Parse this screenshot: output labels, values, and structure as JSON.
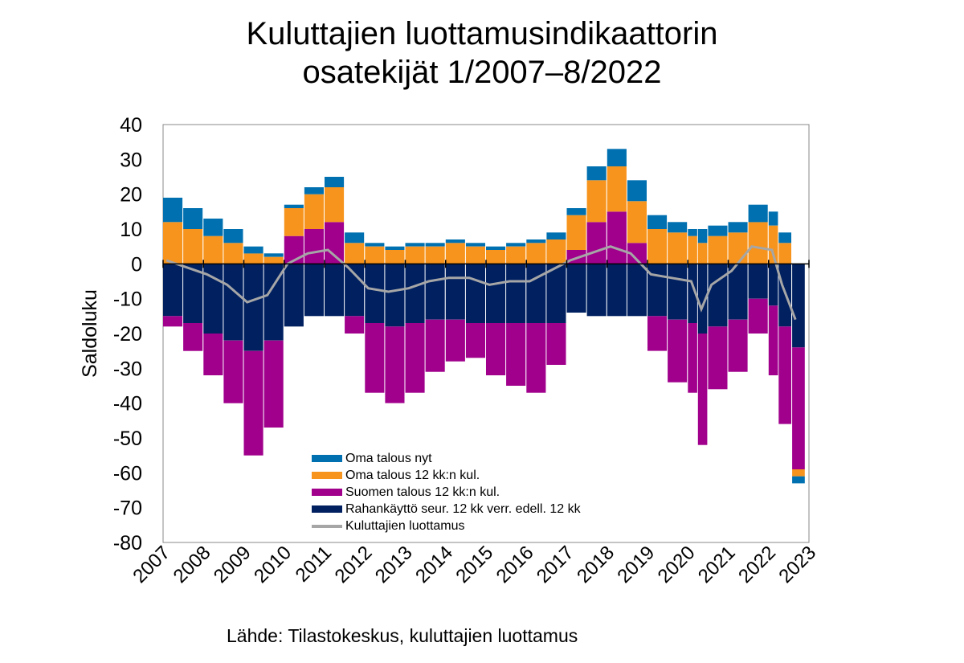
{
  "title": "Kuluttajien luottamusindikaattorin osatekijät 1/2007–8/2022",
  "title_lines": [
    "Kuluttajien luottamusindikaattorin",
    "osatekijät 1/2007–8/2022"
  ],
  "source": "Lähde: Tilastokeskus, kuluttajien luottamus",
  "chart_data": {
    "type": "bar",
    "stacked": true,
    "ylabel": "Saldoluku",
    "xlabel": "",
    "ylim": [
      -80,
      40
    ],
    "yticks": [
      40,
      30,
      20,
      10,
      0,
      -10,
      -20,
      -30,
      -40,
      -50,
      -60,
      -70,
      -80
    ],
    "xticks": [
      "2007",
      "2008",
      "2009",
      "2010",
      "2011",
      "2012",
      "2013",
      "2014",
      "2015",
      "2016",
      "2017",
      "2018",
      "2019",
      "2020",
      "2021",
      "2022",
      "2023"
    ],
    "x_period": "monthly, 1/2007–8/2022",
    "legend_position": "bottom-center",
    "x": [
      "2007-01",
      "2007-07",
      "2008-01",
      "2008-07",
      "2009-01",
      "2009-07",
      "2010-01",
      "2010-07",
      "2011-01",
      "2011-07",
      "2012-01",
      "2012-07",
      "2013-01",
      "2013-07",
      "2014-01",
      "2014-07",
      "2015-01",
      "2015-07",
      "2016-01",
      "2016-07",
      "2017-01",
      "2017-07",
      "2018-01",
      "2018-07",
      "2019-01",
      "2019-07",
      "2020-01",
      "2020-04",
      "2020-07",
      "2021-01",
      "2021-07",
      "2022-01",
      "2022-04",
      "2022-08"
    ],
    "series": [
      {
        "name": "Oma talous nyt",
        "color": "#0070b0",
        "values": [
          7,
          6,
          5,
          4,
          2,
          1,
          1,
          2,
          3,
          3,
          1,
          1,
          1,
          1,
          1,
          1,
          1,
          1,
          1,
          2,
          2,
          4,
          5,
          6,
          4,
          3,
          2,
          4,
          3,
          3,
          5,
          4,
          3,
          -2
        ]
      },
      {
        "name": "Oma talous 12 kk:n kul.",
        "color": "#f7941d",
        "values": [
          12,
          10,
          8,
          6,
          3,
          2,
          8,
          10,
          10,
          6,
          5,
          4,
          5,
          5,
          6,
          5,
          4,
          5,
          6,
          7,
          10,
          12,
          13,
          12,
          10,
          9,
          8,
          6,
          8,
          9,
          12,
          11,
          6,
          -2
        ]
      },
      {
        "name": "Suomen talous 12 kk:n kul.",
        "color": "#a0008c",
        "values": [
          -3,
          -8,
          -12,
          -18,
          -30,
          -25,
          8,
          10,
          12,
          -5,
          -20,
          -22,
          -20,
          -15,
          -12,
          -10,
          -15,
          -18,
          -20,
          -12,
          4,
          12,
          15,
          6,
          -10,
          -18,
          -20,
          -32,
          -18,
          -15,
          -10,
          -20,
          -28,
          -35
        ]
      },
      {
        "name": "Rahankäyttö seur. 12 kk verr. edell. 12 kk",
        "color": "#002060",
        "values": [
          -15,
          -17,
          -20,
          -22,
          -25,
          -22,
          -18,
          -15,
          -15,
          -15,
          -17,
          -18,
          -17,
          -16,
          -16,
          -17,
          -17,
          -17,
          -17,
          -17,
          -14,
          -15,
          -15,
          -15,
          -15,
          -16,
          -17,
          -20,
          -18,
          -16,
          -10,
          -12,
          -18,
          -24
        ]
      },
      {
        "name": "Kuluttajien luottamus",
        "color": "#a6a6a6",
        "type": "line",
        "values": [
          1,
          -1,
          -3,
          -6,
          -11,
          -9,
          0,
          3,
          4,
          -1,
          -7,
          -8,
          -7,
          -5,
          -4,
          -4,
          -6,
          -5,
          -5,
          -2,
          1,
          3,
          5,
          3,
          -3,
          -4,
          -5,
          -13,
          -6,
          -2,
          5,
          4,
          -6,
          -16
        ]
      }
    ]
  }
}
